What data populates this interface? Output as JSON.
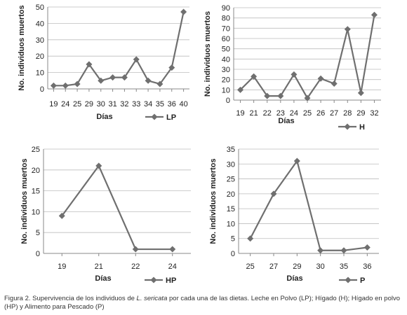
{
  "chart_data": [
    {
      "type": "line",
      "categories": [
        "19",
        "24",
        "25",
        "29",
        "30",
        "31",
        "32",
        "33",
        "34",
        "35",
        "36",
        "40"
      ],
      "series": [
        {
          "name": "LP",
          "values": [
            2,
            2,
            3,
            15,
            5,
            7,
            7,
            18,
            5,
            3,
            13,
            47
          ]
        }
      ],
      "xlabel": "Días",
      "ylabel": "No. individuos muertos",
      "ylim": [
        0,
        50
      ],
      "yticks": [
        0,
        10,
        20,
        30,
        40,
        50
      ],
      "grid": true,
      "legend": "bottom-right",
      "color": "#6f6f6f"
    },
    {
      "type": "line",
      "categories": [
        "19",
        "21",
        "22",
        "23",
        "24",
        "25",
        "26",
        "27",
        "28",
        "29",
        "32"
      ],
      "series": [
        {
          "name": "H",
          "values": [
            10,
            23,
            4,
            4,
            25,
            2,
            21,
            16,
            69,
            7,
            83
          ]
        }
      ],
      "xlabel": "Días",
      "ylabel": "No. individuos muertos",
      "ylim": [
        0,
        90
      ],
      "yticks": [
        0,
        10,
        20,
        30,
        40,
        50,
        60,
        70,
        80,
        90
      ],
      "grid": true,
      "legend": "bottom-right",
      "color": "#6f6f6f"
    },
    {
      "type": "line",
      "categories": [
        "19",
        "21",
        "22",
        "24"
      ],
      "series": [
        {
          "name": "HP",
          "values": [
            9,
            21,
            1,
            1
          ]
        }
      ],
      "xlabel": "Días",
      "ylabel": "No. individuos muertos",
      "ylim": [
        0,
        25
      ],
      "yticks": [
        0,
        5,
        10,
        15,
        20,
        25
      ],
      "grid": true,
      "legend": "bottom-right",
      "color": "#6f6f6f"
    },
    {
      "type": "line",
      "categories": [
        "25",
        "27",
        "29",
        "30",
        "35",
        "36"
      ],
      "series": [
        {
          "name": "P",
          "values": [
            5,
            20,
            31,
            1,
            1,
            2
          ]
        }
      ],
      "xlabel": "Días",
      "ylabel": "No. individuos muertos",
      "ylim": [
        0,
        35
      ],
      "yticks": [
        0,
        5,
        10,
        15,
        20,
        25,
        30,
        35
      ],
      "grid": true,
      "legend": "bottom-right",
      "color": "#6f6f6f"
    }
  ],
  "caption": {
    "prefix": "Figura 2. Supervivencia de los individuos de ",
    "species": "L. sericata",
    "suffix": " por cada una de las dietas. Leche en Polvo (LP); Hígado (H); Hígado en polvo (HP) y Alimento para Pescado (P)"
  }
}
